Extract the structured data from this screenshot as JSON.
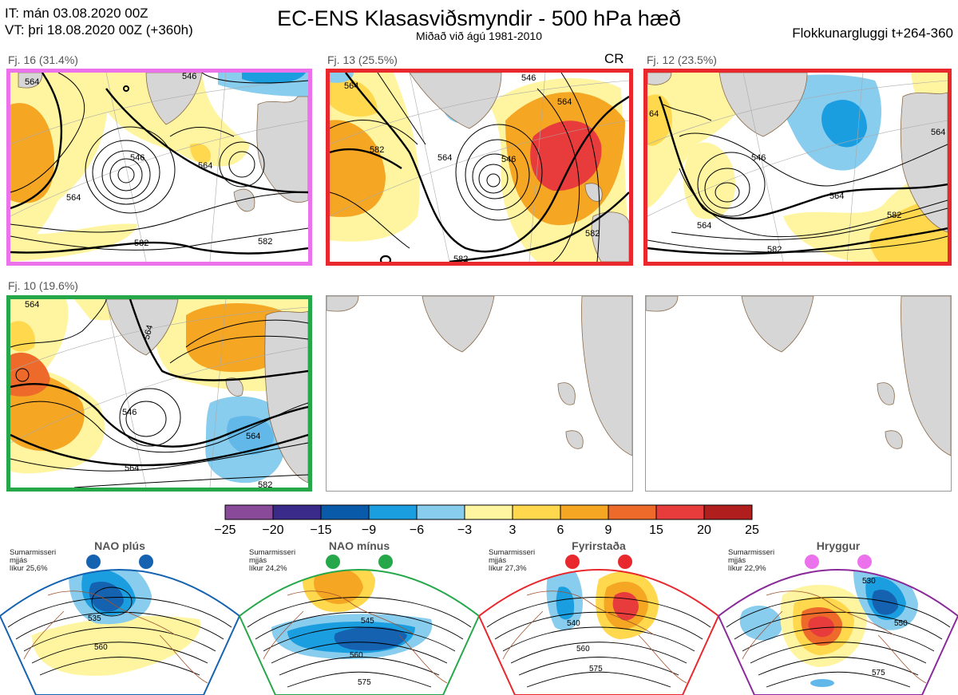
{
  "header": {
    "it_line": "IT: mán 03.08.2020 00Z",
    "vt_line": "VT: þri 18.08.2020 00Z  (+360h)",
    "title": "EC-ENS Klasasviðsmyndir - 500 hPa hæð",
    "subtitle": "Miðað við ágú 1981-2010",
    "window": "Flokkunargluggi t+264-360"
  },
  "colors": {
    "land": "#d6d6d6",
    "coast": "#8a6a4a",
    "pos1": "#fff5a0",
    "pos2": "#ffd84d",
    "pos3": "#f5a623",
    "pos4": "#ee6a2a",
    "pos5": "#e83c3c",
    "neg1": "#a8d8f2",
    "neg2": "#62b8e8",
    "neg3": "#1f8fd6",
    "neg4": "#1462b0"
  },
  "clusters": [
    {
      "label": "Fj. 16 (31.4%)",
      "border_color": "#ec72ec",
      "contours": [
        "564",
        "546",
        "546",
        "564",
        "582",
        "582",
        "564"
      ]
    },
    {
      "label": "Fj. 13 (25.5%)",
      "border_color": "#e8282c",
      "contours": [
        "564",
        "582",
        "564",
        "546",
        "564",
        "582",
        "582",
        "546"
      ],
      "tag": "CR"
    },
    {
      "label": "Fj. 12 (23.5%)",
      "border_color": "#e8282c",
      "contours": [
        "64",
        "546",
        "564",
        "564",
        "582",
        "582",
        "564"
      ]
    },
    {
      "label": "Fj. 10 (19.6%)",
      "border_color": "#26a84a",
      "contours": [
        "564",
        "564",
        "546",
        "564",
        "564",
        "582"
      ]
    }
  ],
  "colorbar": {
    "ticks": [
      "−25",
      "−20",
      "−15",
      "−9",
      "−6",
      "−3",
      "3",
      "6",
      "9",
      "15",
      "20",
      "25"
    ],
    "colors": [
      "#8a4a9a",
      "#3a2a8a",
      "#0a5aaa",
      "#1a9ee0",
      "#88ccee",
      "#ffffff",
      "#fff5a0",
      "#ffd84d",
      "#f5a623",
      "#ee6a2a",
      "#e83c3c",
      "#b01e1e"
    ]
  },
  "regimes": [
    {
      "name": "NAO plús",
      "prob_text": "Sumarmisseri\nmjjás\nlíkur 25,6%",
      "color": "#1462b0",
      "contours": [
        "535",
        "560"
      ]
    },
    {
      "name": "NAO mínus",
      "prob_text": "Sumarmisseri\nmjjás\nlíkur 24,2%",
      "color": "#26a84a",
      "contours": [
        "545",
        "560",
        "575"
      ]
    },
    {
      "name": "Fyrirstaða",
      "prob_text": "Sumarmisseri\nmjjás\nlíkur 27,3%",
      "color": "#e8282c",
      "contours": [
        "540",
        "560",
        "575"
      ]
    },
    {
      "name": "Hryggur",
      "prob_text": "Sumarmisseri\nmjjás\nlíkur 22,9%",
      "color": "#ec72ec",
      "contours": [
        "530",
        "550",
        "575"
      ]
    }
  ]
}
